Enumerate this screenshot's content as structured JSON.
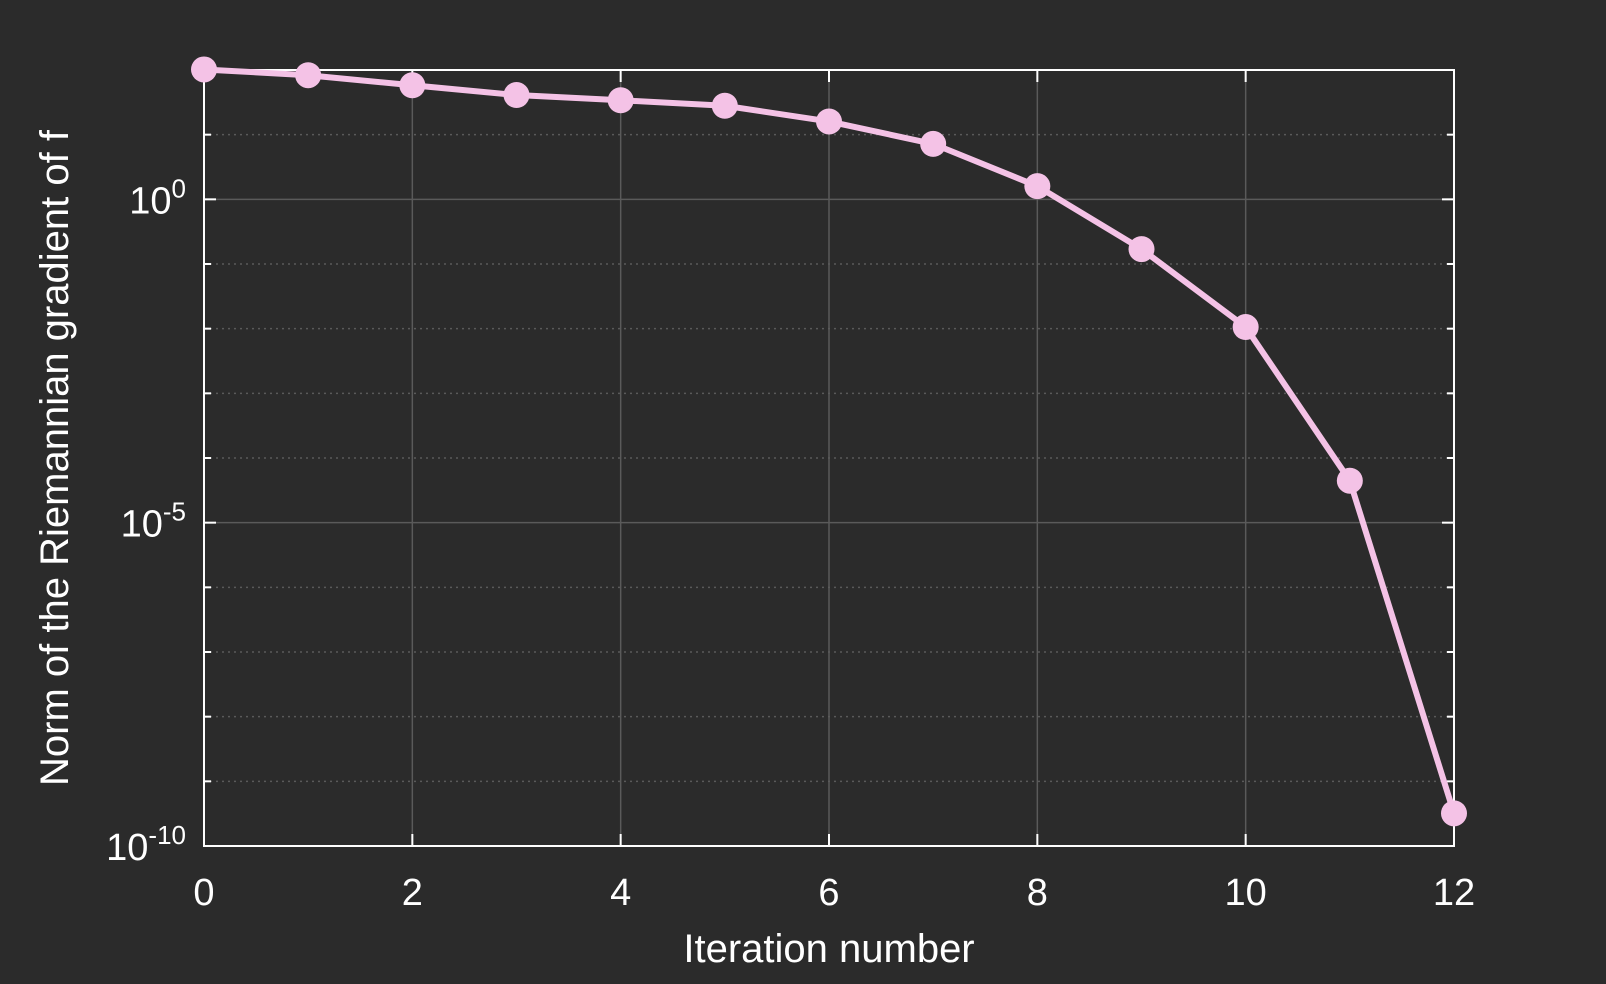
{
  "chart_data": {
    "type": "line",
    "xlabel": "Iteration number",
    "ylabel": "Norm of the Riemannian gradient of f",
    "xlim": [
      0,
      12
    ],
    "ylim": [
      1e-10,
      100
    ],
    "y_scale": "log",
    "grid": true,
    "x_ticks": [
      "0",
      "2",
      "4",
      "6",
      "8",
      "10",
      "12"
    ],
    "y_ticks": [
      {
        "base": "10",
        "exp": "0",
        "value": 1
      },
      {
        "base": "10",
        "exp": "-5",
        "value": 1e-05
      },
      {
        "base": "10",
        "exp": "-10",
        "value": 1e-10
      }
    ],
    "series": [
      {
        "x": [
          0,
          1,
          2,
          3,
          4,
          5,
          6,
          7,
          8,
          9,
          10,
          11,
          12
        ],
        "y": [
          102,
          83,
          58,
          41,
          34,
          28,
          16,
          7.2,
          1.6,
          0.17,
          0.0106,
          4.45e-05,
          3.2e-10
        ]
      }
    ],
    "colors": {
      "background": "#2b2b2b",
      "line": "#f4c2e6",
      "axes": "#ffffff",
      "grid": "#5a5a5a"
    }
  }
}
